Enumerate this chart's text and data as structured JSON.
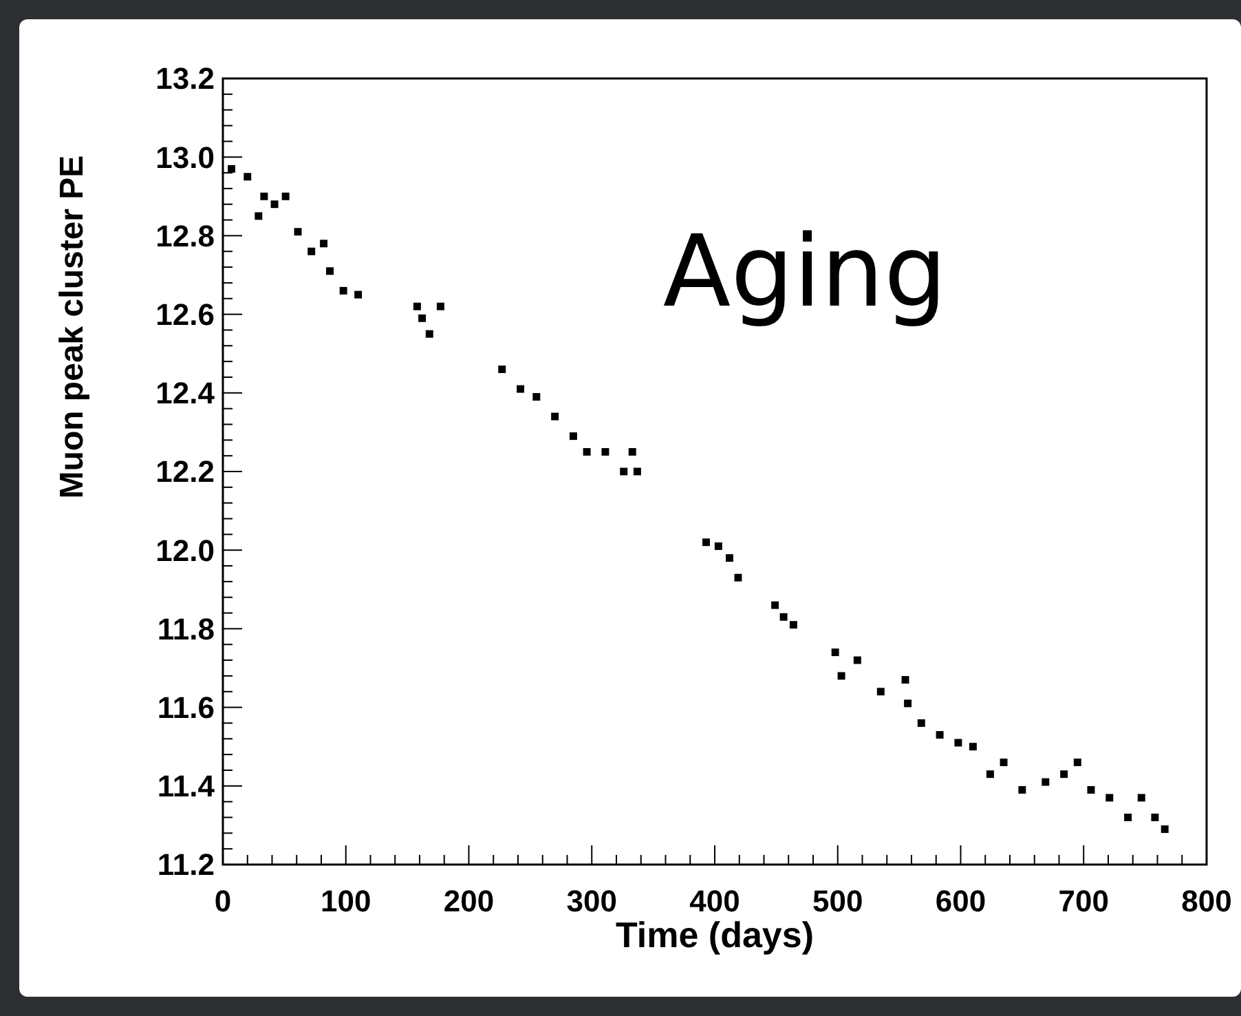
{
  "chart_data": {
    "type": "scatter",
    "xlabel": "Time (days)",
    "ylabel": "Muon peak cluster PE",
    "annotations": [
      "Aging"
    ],
    "marker": "square",
    "grid": false,
    "series": [
      {
        "color": "#000000",
        "x": [
          7,
          20,
          29,
          33.5,
          42,
          51,
          61,
          72,
          82,
          87,
          98,
          110,
          158,
          162,
          168,
          177,
          227,
          242,
          255,
          270,
          285,
          296,
          311,
          326,
          333,
          337,
          393,
          403,
          412,
          419,
          449,
          456,
          464,
          498,
          503,
          516,
          535,
          555,
          557,
          568,
          583,
          598,
          610,
          624,
          635,
          650,
          669,
          684,
          695,
          706,
          721,
          736,
          747,
          758,
          766
        ],
        "values": [
          12.97,
          12.95,
          12.85,
          12.9,
          12.88,
          12.9,
          12.81,
          12.76,
          12.78,
          12.71,
          12.66,
          12.65,
          12.62,
          12.59,
          12.55,
          12.62,
          12.46,
          12.41,
          12.39,
          12.34,
          12.29,
          12.25,
          12.25,
          12.2,
          12.25,
          12.2,
          12.02,
          12.01,
          11.98,
          11.93,
          11.86,
          11.83,
          11.81,
          11.74,
          11.68,
          11.72,
          11.64,
          11.67,
          11.61,
          11.56,
          11.53,
          11.51,
          11.5,
          11.43,
          11.46,
          11.39,
          11.41,
          11.43,
          11.46,
          11.39,
          11.37,
          11.32,
          11.37,
          11.32,
          11.29
        ]
      }
    ],
    "xlim": [
      0,
      800
    ],
    "xticks": [
      0,
      100,
      200,
      300,
      400,
      500,
      600,
      700,
      800
    ],
    "ylim": [
      11.2,
      13.2
    ],
    "yticks": [
      {
        "value": 11.2,
        "label": "11.2"
      },
      {
        "value": 11.4,
        "label": "11.4"
      },
      {
        "value": 11.6,
        "label": "11.6"
      },
      {
        "value": 11.8,
        "label": "11.8"
      },
      {
        "value": 12,
        "label": "12.0"
      },
      {
        "value": 12.2,
        "label": "12.2"
      },
      {
        "value": 12.4,
        "label": "12.4"
      },
      {
        "value": 12.6,
        "label": "12.6"
      },
      {
        "value": 12.8,
        "label": "12.8"
      },
      {
        "value": 13,
        "label": "13.0"
      },
      {
        "value": 13.2,
        "label": "13.2"
      }
    ]
  }
}
